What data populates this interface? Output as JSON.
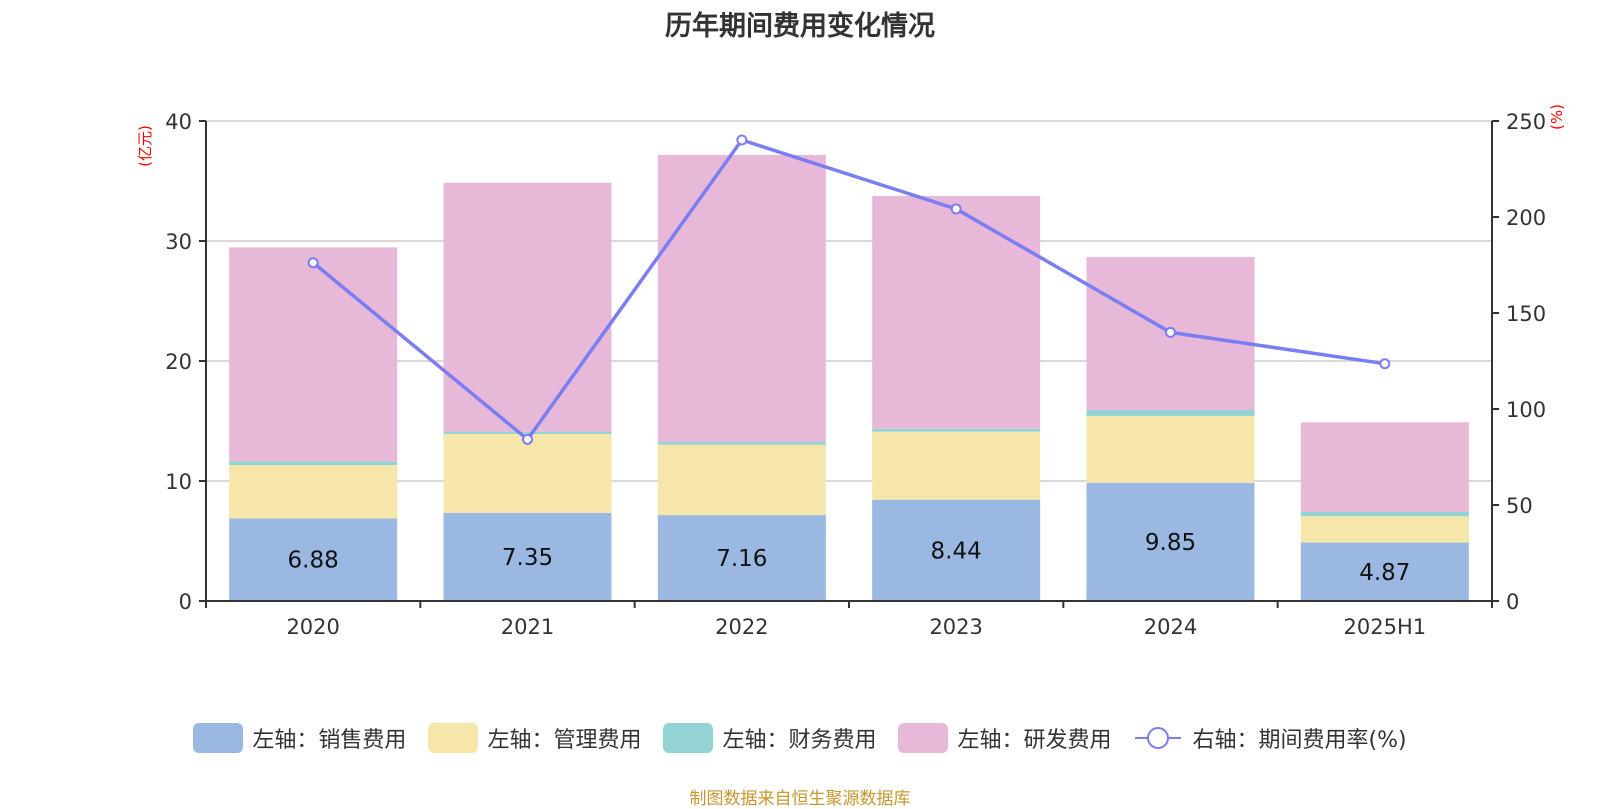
{
  "chart_data": {
    "type": "bar",
    "stacked": true,
    "title": "历年期间费用变化情况",
    "categories": [
      "2020",
      "2021",
      "2022",
      "2023",
      "2024",
      "2025H1"
    ],
    "y_left": {
      "unit_label": "(亿元)",
      "range": [
        0,
        40
      ],
      "ticks": [
        0,
        10,
        20,
        30,
        40
      ]
    },
    "y_right": {
      "unit_label": "(%)",
      "range": [
        0,
        250
      ],
      "ticks": [
        0,
        50,
        100,
        150,
        200,
        250
      ]
    },
    "grid": true,
    "series": [
      {
        "name": "左轴：销售费用",
        "type": "bar",
        "axis": "left",
        "color": "#9bb8e2",
        "values": [
          6.88,
          7.35,
          7.16,
          8.44,
          9.85,
          4.87
        ],
        "show_labels": true
      },
      {
        "name": "左轴：管理费用",
        "type": "bar",
        "axis": "left",
        "color": "#f7e6aa",
        "values": [
          4.45,
          6.57,
          5.87,
          5.67,
          5.57,
          2.19
        ]
      },
      {
        "name": "左轴：财务费用",
        "type": "bar",
        "axis": "left",
        "color": "#94d3d3",
        "values": [
          0.3,
          0.19,
          0.25,
          0.25,
          0.5,
          0.36
        ]
      },
      {
        "name": "左轴：研发费用",
        "type": "bar",
        "axis": "left",
        "color": "#e7b8d8",
        "values": [
          17.84,
          20.75,
          23.89,
          19.39,
          12.75,
          7.47
        ]
      },
      {
        "name": "右轴：期间费用率(%)",
        "type": "line",
        "axis": "right",
        "color": "#7a7ef2",
        "values": [
          176.2,
          84.2,
          240.1,
          204.2,
          139.9,
          123.6
        ]
      }
    ],
    "legend_position": "bottom"
  },
  "footer": {
    "source_text": "制图数据来自恒生聚源数据库",
    "source_color": "#c8962e"
  }
}
